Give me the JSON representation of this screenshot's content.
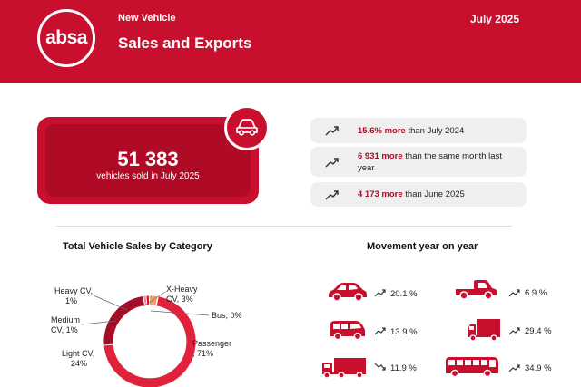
{
  "header": {
    "logo_text": "absa",
    "subtitle": "New Vehicle",
    "title": "Sales and Exports",
    "date": "July 2025"
  },
  "summary": {
    "value": "51 383",
    "label": "vehicles sold in July 2025",
    "icon": "car-icon"
  },
  "comparisons": [
    {
      "highlight": "15.6% more",
      "rest": " than July 2024",
      "icon": "trend-up-icon"
    },
    {
      "highlight": "6 931 more",
      "rest": " than the same month last year",
      "icon": "trend-up-icon"
    },
    {
      "highlight": "4 173 more",
      "rest": " than June 2025",
      "icon": "trend-up-icon"
    }
  ],
  "category_chart": {
    "title": "Total Vehicle Sales by Category",
    "labels": {
      "heavy_cv": [
        "Heavy CV,",
        "1%"
      ],
      "xheavy_cv": [
        "X-Heavy",
        "CV, 3%"
      ],
      "bus": "Bus, 0%",
      "medium_cv": [
        "Medium",
        "CV, 1%"
      ],
      "passenger": [
        "Passenger",
        ", 71%"
      ],
      "light_cv": [
        "Light CV,",
        "24%"
      ]
    },
    "colors": {
      "passenger": "#e0223d",
      "light_cv": "#a30d27",
      "medium_cv": "#f08a8a",
      "heavy_cv": "#c8102e",
      "xheavy_cv": "#f4a06a",
      "bus": "#7a0a1e"
    }
  },
  "chart_data": {
    "type": "pie",
    "title": "Total Vehicle Sales by Category",
    "categories": [
      "Passenger",
      "Light CV",
      "Medium CV",
      "Heavy CV",
      "X-Heavy CV",
      "Bus"
    ],
    "values": [
      71,
      24,
      1,
      1,
      3,
      0
    ],
    "unit": "%",
    "legend": "none"
  },
  "movement": {
    "title": "Movement year on year",
    "items": [
      {
        "vehicle": "passenger-car-icon",
        "pct": "20.1 %",
        "trend": "up"
      },
      {
        "vehicle": "pickup-truck-icon",
        "pct": "6.9 %",
        "trend": "up"
      },
      {
        "vehicle": "minibus-icon",
        "pct": "13.9 %",
        "trend": "up"
      },
      {
        "vehicle": "medium-truck-icon",
        "pct": "29.4 %",
        "trend": "up"
      },
      {
        "vehicle": "heavy-truck-icon",
        "pct": "11.9 %",
        "trend": "down"
      },
      {
        "vehicle": "bus-icon",
        "pct": "34.9 %",
        "trend": "up"
      }
    ]
  },
  "accent_color": "#c8102e"
}
